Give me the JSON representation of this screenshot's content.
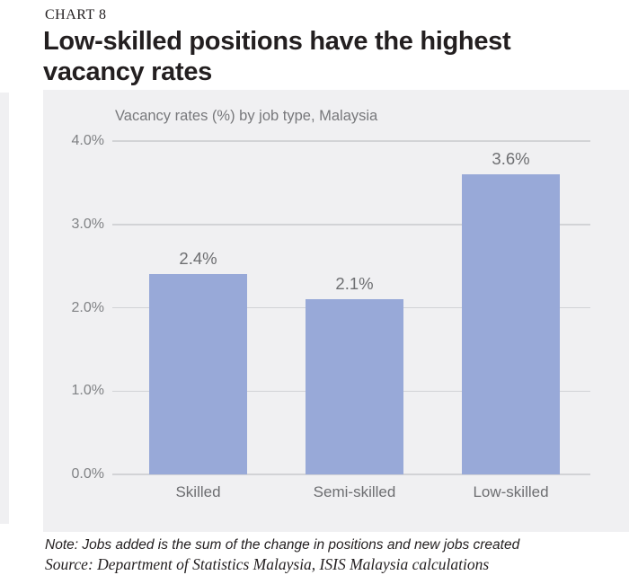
{
  "header": {
    "chart_label": "CHART 8",
    "title": "Low-skilled positions have the highest vacancy rates"
  },
  "chart_data": {
    "type": "bar",
    "title": "Vacancy rates (%) by job type, Malaysia",
    "categories": [
      "Skilled",
      "Semi-skilled",
      "Low-skilled"
    ],
    "values": [
      2.4,
      2.1,
      3.6
    ],
    "value_labels": [
      "2.4%",
      "2.1%",
      "3.6%"
    ],
    "xlabel": "",
    "ylabel": "",
    "ylim": [
      0,
      4
    ],
    "yticks": [
      0,
      1,
      2,
      3,
      4
    ],
    "ytick_labels": [
      "0.0%",
      "1.0%",
      "2.0%",
      "3.0%",
      "4.0%"
    ],
    "grid": true,
    "legend": "none"
  },
  "notes": {
    "note": "Note: Jobs added is the sum of the change in positions and new jobs created",
    "source": "Source: Department of Statistics Malaysia, ISIS Malaysia calculations"
  },
  "colors": {
    "bar": "#98a9d8",
    "panel_bg": "#f0f0f2",
    "gridline": "#d2d3d6",
    "tick_label": "#808285",
    "value_label": "#6d6e71",
    "subtitle": "#77787b",
    "ink": "#231f20"
  }
}
